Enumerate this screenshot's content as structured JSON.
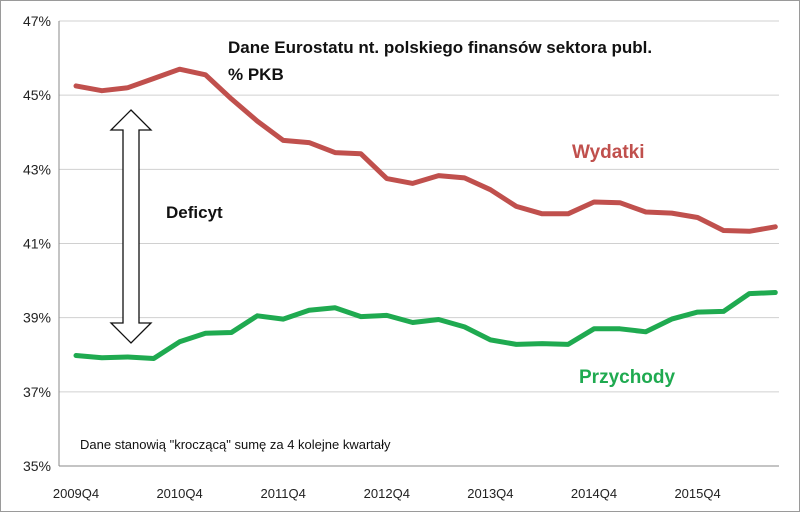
{
  "chart_data": {
    "type": "line",
    "title": "Dane Eurostatu nt. polskiego finansów sektora publ.",
    "subtitle": "% PKB",
    "annotation_gap": "Deficyt",
    "footnote": "Dane stanowią \"kroczącą\" sumę za 4 kolejne kwartały",
    "ylim": [
      35,
      47
    ],
    "yticks": [
      35,
      37,
      39,
      41,
      43,
      45,
      47
    ],
    "ytick_labels": [
      "35%",
      "37%",
      "39%",
      "41%",
      "43%",
      "45%",
      "47%"
    ],
    "grid": true,
    "x": [
      "2009Q4",
      "2010Q1",
      "2010Q2",
      "2010Q3",
      "2010Q4",
      "2011Q1",
      "2011Q2",
      "2011Q3",
      "2011Q4",
      "2012Q1",
      "2012Q2",
      "2012Q3",
      "2012Q4",
      "2013Q1",
      "2013Q2",
      "2013Q3",
      "2013Q4",
      "2014Q1",
      "2014Q2",
      "2014Q3",
      "2014Q4",
      "2015Q1",
      "2015Q2",
      "2015Q3",
      "2015Q4",
      "2016Q1",
      "2016Q2",
      "2016Q3"
    ],
    "x_tick_labels": [
      {
        "index": 0,
        "label": "2009Q4"
      },
      {
        "index": 4,
        "label": "2010Q4"
      },
      {
        "index": 8,
        "label": "2011Q4"
      },
      {
        "index": 12,
        "label": "2012Q4"
      },
      {
        "index": 16,
        "label": "2013Q4"
      },
      {
        "index": 20,
        "label": "2014Q4"
      },
      {
        "index": 24,
        "label": "2015Q4"
      }
    ],
    "series": [
      {
        "name": "Wydatki",
        "color": "#c0504d",
        "values": [
          45.25,
          45.12,
          45.2,
          45.45,
          45.7,
          45.55,
          44.9,
          44.3,
          43.78,
          43.72,
          43.45,
          43.42,
          42.75,
          42.62,
          42.83,
          42.77,
          42.45,
          42.0,
          41.8,
          41.8,
          42.12,
          42.1,
          41.85,
          41.82,
          41.7,
          41.35,
          41.33,
          41.45
        ]
      },
      {
        "name": "Przychody",
        "color": "#1faa50",
        "values": [
          37.98,
          37.92,
          37.94,
          37.9,
          38.35,
          38.58,
          38.6,
          39.05,
          38.96,
          39.2,
          39.27,
          39.03,
          39.06,
          38.87,
          38.95,
          38.75,
          38.4,
          38.28,
          38.3,
          38.28,
          38.7,
          38.7,
          38.62,
          38.96,
          39.15,
          39.17,
          39.65,
          39.68
        ]
      }
    ]
  }
}
